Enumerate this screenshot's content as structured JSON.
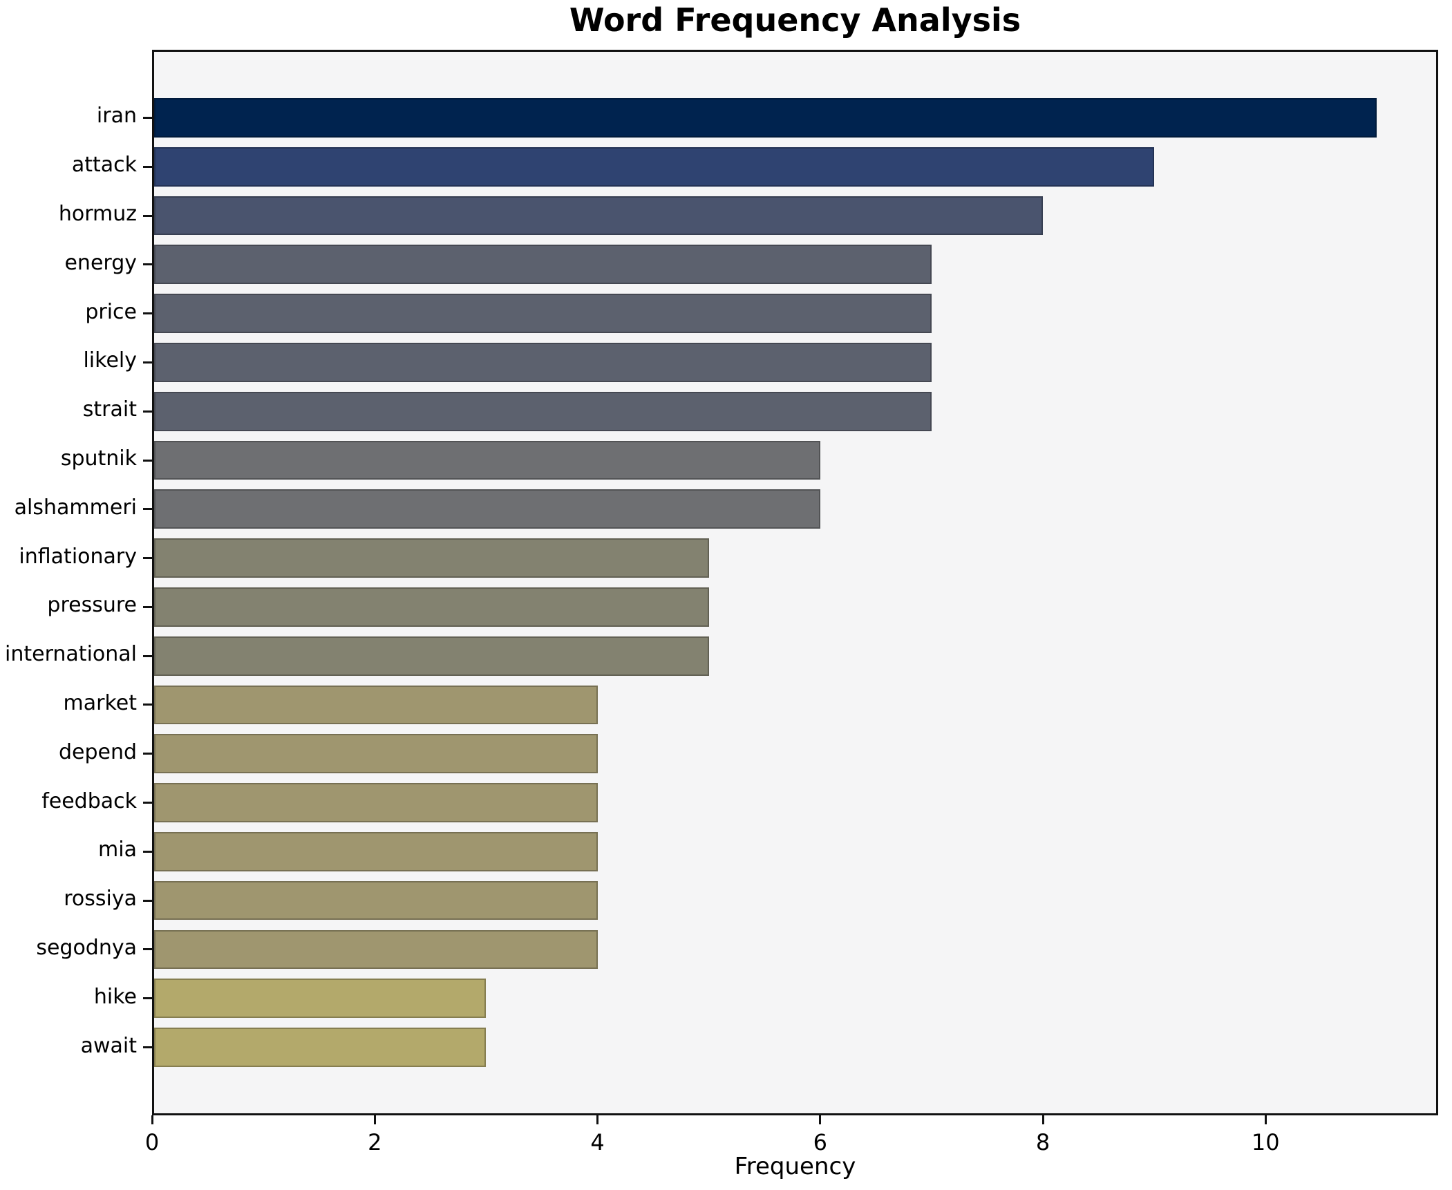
{
  "chart_data": {
    "type": "bar",
    "orientation": "horizontal",
    "title": "Word Frequency Analysis",
    "xlabel": "Frequency",
    "ylabel": "",
    "categories": [
      "iran",
      "attack",
      "hormuz",
      "energy",
      "price",
      "likely",
      "strait",
      "sputnik",
      "alshammeri",
      "inflationary",
      "pressure",
      "international",
      "market",
      "depend",
      "feedback",
      "mia",
      "rossiya",
      "segodnya",
      "hike",
      "await"
    ],
    "values": [
      11,
      9,
      8,
      7,
      7,
      7,
      7,
      6,
      6,
      5,
      5,
      5,
      4,
      4,
      4,
      4,
      4,
      4,
      3,
      3
    ],
    "bar_colors": [
      "#00234f",
      "#2f4371",
      "#4a546e",
      "#5c616e",
      "#5c616e",
      "#5c616e",
      "#5c616e",
      "#6e6f72",
      "#6e6f72",
      "#838270",
      "#838270",
      "#838270",
      "#9f966f",
      "#9f966f",
      "#9f966f",
      "#9f966f",
      "#9f966f",
      "#9f966f",
      "#b3a96b",
      "#b3a96b"
    ],
    "xtick_labels": [
      "0",
      "2",
      "4",
      "6",
      "8",
      "10"
    ],
    "xtick_values": [
      0,
      2,
      4,
      6,
      8,
      10
    ],
    "xlim": [
      0,
      11.55
    ],
    "grid": false,
    "legend": "none",
    "bar_height_ratio": 0.8,
    "colors": {
      "plot_background": "#f5f5f6",
      "figure_background": "#ffffff",
      "spine": "#111111",
      "bar_edge": "rgba(0,0,0,0.25)",
      "text": "#000000"
    }
  }
}
